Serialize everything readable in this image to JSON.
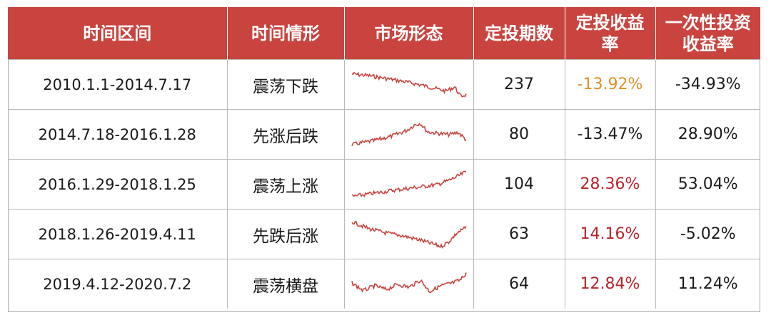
{
  "colors": {
    "header_bg": "#c9443f",
    "spark_line": "#c9443f",
    "orange": "#e0912a",
    "red": "#b6242a"
  },
  "headers": [
    "时间区间",
    "时间情形",
    "市场形态",
    "定投期数",
    "定投收益率",
    "一次性投资收益率"
  ],
  "rows": [
    {
      "range": "2010.1.1-2014.7.17",
      "trend": "震荡下跌",
      "spark": "decline-oscillating",
      "periods": "237",
      "dca_return": "-13.92%",
      "dca_color": "orange",
      "lump_return": "-34.93%"
    },
    {
      "range": "2014.7.18-2016.1.28",
      "trend": "先涨后跌",
      "spark": "rise-then-fall",
      "periods": "80",
      "dca_return": "-13.47%",
      "dca_color": "default",
      "lump_return": "28.90%"
    },
    {
      "range": "2016.1.29-2018.1.25",
      "trend": "震荡上涨",
      "spark": "rise-oscillating",
      "periods": "104",
      "dca_return": "28.36%",
      "dca_color": "red",
      "lump_return": "53.04%"
    },
    {
      "range": "2018.1.26-2019.4.11",
      "trend": "先跌后涨",
      "spark": "fall-then-rise",
      "periods": "63",
      "dca_return": "14.16%",
      "dca_color": "red",
      "lump_return": "-5.02%"
    },
    {
      "range": "2019.4.12-2020.7.2",
      "trend": "震荡横盘",
      "spark": "sideways-oscillating",
      "periods": "64",
      "dca_return": "12.84%",
      "dca_color": "red",
      "lump_return": "11.24%"
    }
  ]
}
